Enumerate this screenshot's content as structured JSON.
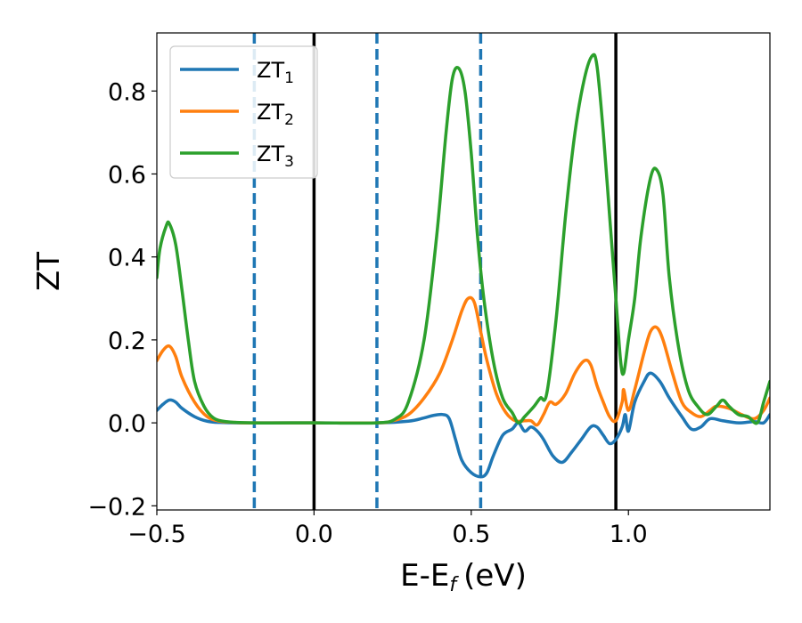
{
  "chart_data": {
    "type": "line",
    "xlabel": "E-E",
    "xlabel_sub": "f",
    "xlabel_unit": "(eV)",
    "ylabel": "ZT",
    "xlim": [
      -0.5,
      1.45
    ],
    "ylim": [
      -0.21,
      0.94
    ],
    "xticks": [
      -0.5,
      0.0,
      0.5,
      1.0
    ],
    "xtick_labels": [
      "−0.5",
      "0.0",
      "0.5",
      "1.0"
    ],
    "yticks": [
      -0.2,
      0.0,
      0.2,
      0.4,
      0.6,
      0.8
    ],
    "ytick_labels": [
      "−0.2",
      "0.0",
      "0.2",
      "0.4",
      "0.6",
      "0.8"
    ],
    "grid": false,
    "legend_position": "top-left",
    "vertical_lines": [
      {
        "x": -0.19,
        "style": "dashed",
        "color": "#1f77b4"
      },
      {
        "x": 0.0,
        "style": "solid",
        "color": "#000000"
      },
      {
        "x": 0.2,
        "style": "dashed",
        "color": "#1f77b4"
      },
      {
        "x": 0.53,
        "style": "dashed",
        "color": "#1f77b4"
      },
      {
        "x": 0.96,
        "style": "solid",
        "color": "#000000"
      }
    ],
    "series": [
      {
        "name": "ZT",
        "name_sub": "1",
        "color": "#1f77b4",
        "points": [
          [
            -0.5,
            0.03
          ],
          [
            -0.48,
            0.045
          ],
          [
            -0.46,
            0.055
          ],
          [
            -0.44,
            0.05
          ],
          [
            -0.42,
            0.035
          ],
          [
            -0.38,
            0.015
          ],
          [
            -0.34,
            0.004
          ],
          [
            -0.3,
            0.001
          ],
          [
            -0.2,
            0.0
          ],
          [
            0.0,
            0.0
          ],
          [
            0.2,
            0.0
          ],
          [
            0.3,
            0.004
          ],
          [
            0.35,
            0.012
          ],
          [
            0.38,
            0.018
          ],
          [
            0.41,
            0.02
          ],
          [
            0.43,
            0.01
          ],
          [
            0.45,
            -0.04
          ],
          [
            0.47,
            -0.09
          ],
          [
            0.5,
            -0.12
          ],
          [
            0.53,
            -0.13
          ],
          [
            0.55,
            -0.12
          ],
          [
            0.57,
            -0.08
          ],
          [
            0.6,
            -0.03
          ],
          [
            0.63,
            -0.015
          ],
          [
            0.65,
            0.0
          ],
          [
            0.67,
            -0.02
          ],
          [
            0.69,
            -0.01
          ],
          [
            0.71,
            -0.02
          ],
          [
            0.73,
            -0.04
          ],
          [
            0.76,
            -0.08
          ],
          [
            0.79,
            -0.095
          ],
          [
            0.82,
            -0.07
          ],
          [
            0.85,
            -0.04
          ],
          [
            0.88,
            -0.01
          ],
          [
            0.9,
            -0.01
          ],
          [
            0.92,
            -0.03
          ],
          [
            0.94,
            -0.05
          ],
          [
            0.96,
            -0.04
          ],
          [
            0.98,
            -0.01
          ],
          [
            0.99,
            0.02
          ],
          [
            1.0,
            -0.02
          ],
          [
            1.02,
            0.05
          ],
          [
            1.05,
            0.1
          ],
          [
            1.07,
            0.12
          ],
          [
            1.1,
            0.1
          ],
          [
            1.13,
            0.06
          ],
          [
            1.17,
            0.015
          ],
          [
            1.2,
            -0.015
          ],
          [
            1.23,
            -0.01
          ],
          [
            1.26,
            0.01
          ],
          [
            1.3,
            0.005
          ],
          [
            1.35,
            0.0
          ],
          [
            1.4,
            0.003
          ],
          [
            1.43,
            0.0
          ],
          [
            1.45,
            0.02
          ]
        ]
      },
      {
        "name": "ZT",
        "name_sub": "2",
        "color": "#ff7f0e",
        "points": [
          [
            -0.5,
            0.15
          ],
          [
            -0.48,
            0.175
          ],
          [
            -0.46,
            0.185
          ],
          [
            -0.44,
            0.16
          ],
          [
            -0.42,
            0.11
          ],
          [
            -0.38,
            0.05
          ],
          [
            -0.34,
            0.015
          ],
          [
            -0.3,
            0.004
          ],
          [
            -0.25,
            0.001
          ],
          [
            -0.2,
            0.0
          ],
          [
            0.0,
            0.0
          ],
          [
            0.2,
            0.0
          ],
          [
            0.25,
            0.005
          ],
          [
            0.3,
            0.02
          ],
          [
            0.35,
            0.06
          ],
          [
            0.4,
            0.12
          ],
          [
            0.44,
            0.2
          ],
          [
            0.47,
            0.27
          ],
          [
            0.49,
            0.3
          ],
          [
            0.51,
            0.29
          ],
          [
            0.53,
            0.22
          ],
          [
            0.55,
            0.15
          ],
          [
            0.58,
            0.07
          ],
          [
            0.61,
            0.025
          ],
          [
            0.64,
            0.005
          ],
          [
            0.67,
            0.005
          ],
          [
            0.69,
            0.005
          ],
          [
            0.71,
            -0.005
          ],
          [
            0.73,
            0.02
          ],
          [
            0.75,
            0.05
          ],
          [
            0.77,
            0.045
          ],
          [
            0.8,
            0.07
          ],
          [
            0.83,
            0.12
          ],
          [
            0.86,
            0.15
          ],
          [
            0.88,
            0.14
          ],
          [
            0.9,
            0.09
          ],
          [
            0.92,
            0.05
          ],
          [
            0.94,
            0.015
          ],
          [
            0.96,
            0.005
          ],
          [
            0.98,
            0.05
          ],
          [
            0.985,
            0.08
          ],
          [
            1.0,
            0.03
          ],
          [
            1.02,
            0.08
          ],
          [
            1.05,
            0.17
          ],
          [
            1.07,
            0.22
          ],
          [
            1.09,
            0.23
          ],
          [
            1.11,
            0.2
          ],
          [
            1.14,
            0.12
          ],
          [
            1.17,
            0.05
          ],
          [
            1.2,
            0.025
          ],
          [
            1.23,
            0.015
          ],
          [
            1.26,
            0.03
          ],
          [
            1.28,
            0.04
          ],
          [
            1.32,
            0.035
          ],
          [
            1.36,
            0.02
          ],
          [
            1.4,
            0.01
          ],
          [
            1.43,
            0.03
          ],
          [
            1.45,
            0.06
          ]
        ]
      },
      {
        "name": "ZT",
        "name_sub": "3",
        "color": "#2ca02c",
        "points": [
          [
            -0.5,
            0.35
          ],
          [
            -0.49,
            0.42
          ],
          [
            -0.47,
            0.475
          ],
          [
            -0.46,
            0.48
          ],
          [
            -0.44,
            0.43
          ],
          [
            -0.42,
            0.32
          ],
          [
            -0.4,
            0.2
          ],
          [
            -0.38,
            0.1
          ],
          [
            -0.35,
            0.04
          ],
          [
            -0.32,
            0.012
          ],
          [
            -0.28,
            0.003
          ],
          [
            -0.2,
            0.0
          ],
          [
            0.0,
            0.0
          ],
          [
            0.2,
            0.0
          ],
          [
            0.26,
            0.01
          ],
          [
            0.3,
            0.05
          ],
          [
            0.35,
            0.2
          ],
          [
            0.39,
            0.45
          ],
          [
            0.42,
            0.7
          ],
          [
            0.44,
            0.83
          ],
          [
            0.46,
            0.855
          ],
          [
            0.48,
            0.8
          ],
          [
            0.5,
            0.65
          ],
          [
            0.52,
            0.45
          ],
          [
            0.54,
            0.3
          ],
          [
            0.57,
            0.15
          ],
          [
            0.6,
            0.06
          ],
          [
            0.63,
            0.025
          ],
          [
            0.65,
            0.0
          ],
          [
            0.67,
            0.015
          ],
          [
            0.7,
            0.04
          ],
          [
            0.72,
            0.06
          ],
          [
            0.74,
            0.07
          ],
          [
            0.77,
            0.25
          ],
          [
            0.8,
            0.5
          ],
          [
            0.83,
            0.7
          ],
          [
            0.86,
            0.83
          ],
          [
            0.885,
            0.885
          ],
          [
            0.9,
            0.86
          ],
          [
            0.92,
            0.7
          ],
          [
            0.94,
            0.5
          ],
          [
            0.96,
            0.3
          ],
          [
            0.975,
            0.15
          ],
          [
            0.985,
            0.12
          ],
          [
            1.0,
            0.2
          ],
          [
            1.02,
            0.3
          ],
          [
            1.04,
            0.45
          ],
          [
            1.07,
            0.59
          ],
          [
            1.09,
            0.61
          ],
          [
            1.11,
            0.55
          ],
          [
            1.13,
            0.35
          ],
          [
            1.16,
            0.18
          ],
          [
            1.19,
            0.08
          ],
          [
            1.22,
            0.04
          ],
          [
            1.25,
            0.02
          ],
          [
            1.28,
            0.04
          ],
          [
            1.3,
            0.055
          ],
          [
            1.32,
            0.04
          ],
          [
            1.35,
            0.02
          ],
          [
            1.38,
            0.015
          ],
          [
            1.41,
            0.0
          ],
          [
            1.43,
            0.05
          ],
          [
            1.45,
            0.1
          ]
        ]
      }
    ]
  }
}
